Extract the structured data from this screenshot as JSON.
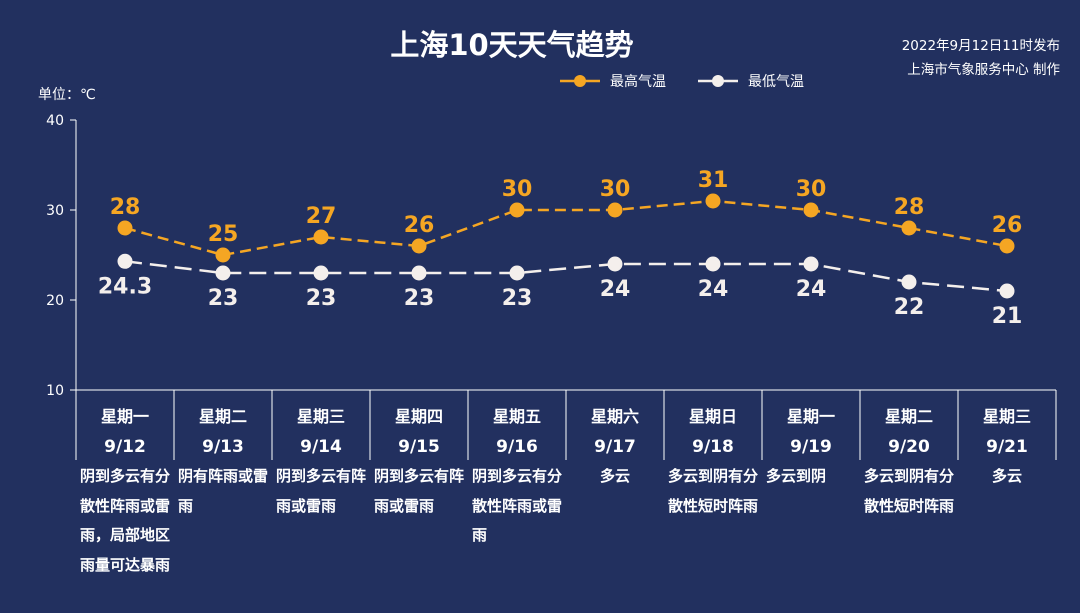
{
  "title": "上海10天天气趋势",
  "publish": {
    "line1": "2022年9月12日11时发布",
    "line2": "上海市气象服务中心 制作"
  },
  "unit_label": "单位：℃",
  "colors": {
    "high": "#f5a623",
    "low": "#f4efec",
    "background": "#22305f",
    "axis": "#ffffff"
  },
  "chart_data": {
    "type": "line",
    "title": "上海10天天气趋势",
    "ylim": [
      10,
      40
    ],
    "yticks": [
      10,
      20,
      30,
      40
    ],
    "legend_position": "top-right",
    "categories": [
      {
        "weekday": "星期一",
        "date": "9/12",
        "desc": "阴到多云有分散性阵雨或雷雨，局部地区雨量可达暴雨"
      },
      {
        "weekday": "星期二",
        "date": "9/13",
        "desc": "阴有阵雨或雷雨"
      },
      {
        "weekday": "星期三",
        "date": "9/14",
        "desc": "阴到多云有阵雨或雷雨"
      },
      {
        "weekday": "星期四",
        "date": "9/15",
        "desc": "阴到多云有阵雨或雷雨"
      },
      {
        "weekday": "星期五",
        "date": "9/16",
        "desc": "阴到多云有分散性阵雨或雷雨"
      },
      {
        "weekday": "星期六",
        "date": "9/17",
        "desc": "多云"
      },
      {
        "weekday": "星期日",
        "date": "9/18",
        "desc": "多云到阴有分散性短时阵雨"
      },
      {
        "weekday": "星期一",
        "date": "9/19",
        "desc": "多云到阴"
      },
      {
        "weekday": "星期二",
        "date": "9/20",
        "desc": "多云到阴有分散性短时阵雨"
      },
      {
        "weekday": "星期三",
        "date": "9/21",
        "desc": "多云"
      }
    ],
    "series": [
      {
        "name": "最高气温",
        "key": "high",
        "values": [
          28,
          25,
          27,
          26,
          30,
          30,
          31,
          30,
          28,
          26
        ],
        "labels": [
          "28",
          "25",
          "27",
          "26",
          "30",
          "30",
          "31",
          "30",
          "28",
          "26"
        ]
      },
      {
        "name": "最低气温",
        "key": "low",
        "values": [
          24.3,
          23,
          23,
          23,
          23,
          24,
          24,
          24,
          22,
          21
        ],
        "labels": [
          "24.3",
          "23",
          "23",
          "23",
          "23",
          "24",
          "24",
          "24",
          "22",
          "21"
        ]
      }
    ]
  }
}
